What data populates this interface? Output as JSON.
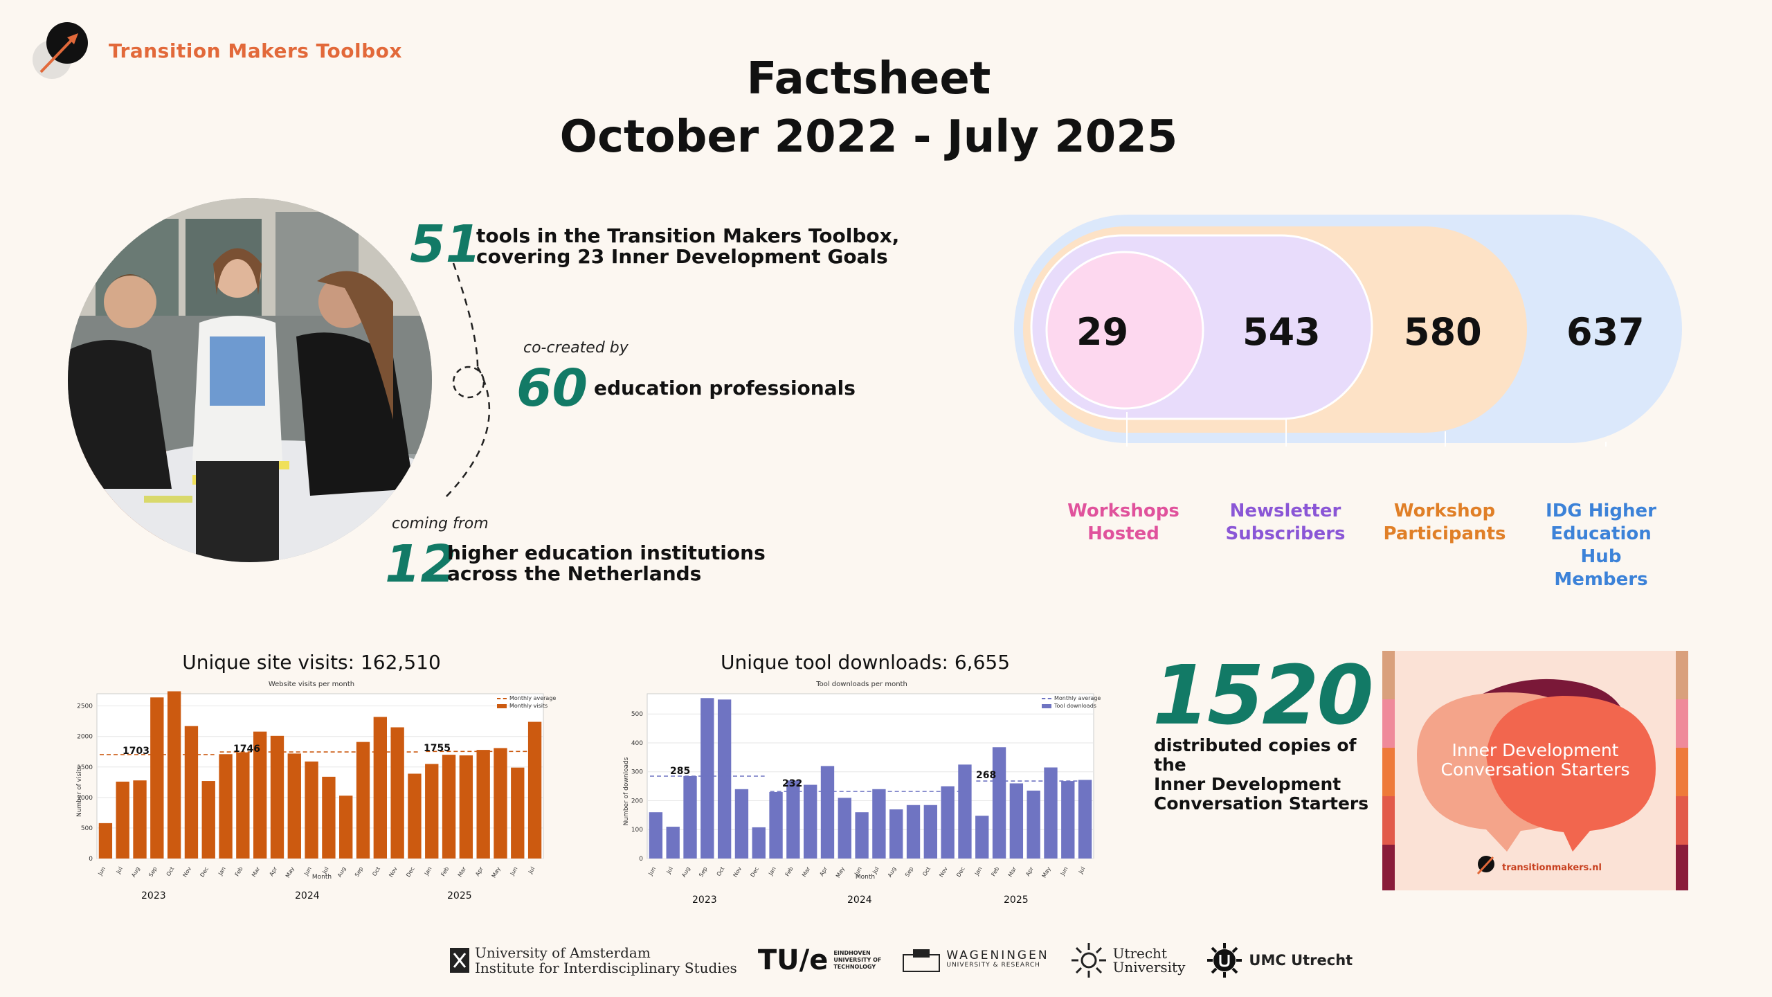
{
  "brand": {
    "name": "Transition Makers Toolbox"
  },
  "title": {
    "line1": "Factsheet",
    "line2": "October 2022 - July 2025"
  },
  "stats": {
    "tools": {
      "value": "51",
      "text_line1": "tools in the Transition Makers Toolbox,",
      "text_line2": "covering 23 Inner Development Goals"
    },
    "cocreated": {
      "prefix": "co-created by",
      "value": "60",
      "text": "education professionals"
    },
    "institutions": {
      "prefix": "coming from",
      "value": "12",
      "text_line1": "higher education institutions",
      "text_line2": "across the Netherlands"
    }
  },
  "nested": {
    "items": [
      {
        "value": "29",
        "label_line1": "Workshops",
        "label_line2": "Hosted",
        "label_line3": "",
        "color": "#e0529c",
        "fill": "#fdd8ef"
      },
      {
        "value": "543",
        "label_line1": "Newsletter",
        "label_line2": "Subscribers",
        "label_line3": "",
        "color": "#8a56d6",
        "fill": "#e8dcfb"
      },
      {
        "value": "580",
        "label_line1": "Workshop",
        "label_line2": "Participants",
        "label_line3": "",
        "color": "#e07f27",
        "fill": "#fde2c6"
      },
      {
        "value": "637",
        "label_line1": "IDG Higher",
        "label_line2": "Education Hub",
        "label_line3": "Members",
        "color": "#3c82d8",
        "fill": "#dbe8fb"
      }
    ]
  },
  "visits": {
    "heading": "Unique site visits: 162,510",
    "inner_title": "Website visits per month",
    "legend_avg": "Monthly average",
    "legend_bar": "Monthly visits",
    "ylabel": "Number of visits",
    "xlabel": "Month",
    "avg_labels": [
      "1703",
      "1746",
      "1755"
    ],
    "years": [
      "2023",
      "2024",
      "2025"
    ]
  },
  "downloads": {
    "heading": "Unique tool downloads: 6,655",
    "inner_title": "Tool downloads per month",
    "legend_avg": "Monthly average",
    "legend_bar": "Tool downloads",
    "ylabel": "Number of downloads",
    "xlabel": "Month",
    "avg_labels": [
      "285",
      "232",
      "268"
    ],
    "years": [
      "2023",
      "2024",
      "2025"
    ]
  },
  "copies": {
    "value": "1520",
    "line1": "distributed copies of the",
    "line2": "Inner Development",
    "line3": "Conversation Starters"
  },
  "card": {
    "title_line1": "Inner Development",
    "title_line2": "Conversation Starters",
    "url": "transitionmakers.nl"
  },
  "logos": {
    "uva_line1": "University of Amsterdam",
    "uva_line2": "Institute for Interdisciplinary Studies",
    "tue_mark": "TU/e",
    "tue_text1": "EINDHOVEN",
    "tue_text2": "UNIVERSITY OF",
    "tue_text3": "TECHNOLOGY",
    "wur_line1": "WAGENINGEN",
    "wur_line2": "UNIVERSITY & RESEARCH",
    "uu_line1": "Utrecht",
    "uu_line2": "University",
    "umc": "UMC Utrecht"
  },
  "chart_data": [
    {
      "type": "bar",
      "title": "Website visits per month",
      "xlabel": "Month",
      "ylabel": "Number of visits",
      "ylim": [
        0,
        2700
      ],
      "yticks": [
        0,
        500,
        1000,
        1500,
        2000,
        2500
      ],
      "legend": "top-right",
      "categories": [
        "Jun",
        "Jul",
        "Aug",
        "Sep",
        "Oct",
        "Nov",
        "Dec",
        "Jan",
        "Feb",
        "Mar",
        "Apr",
        "May",
        "Jun",
        "Jul",
        "Aug",
        "Sep",
        "Oct",
        "Nov",
        "Dec",
        "Jan",
        "Feb",
        "Mar",
        "Apr",
        "May",
        "Jun",
        "Jul"
      ],
      "series": [
        {
          "name": "Monthly visits",
          "values": [
            580,
            1260,
            1280,
            2640,
            2740,
            2170,
            1270,
            1710,
            1740,
            2080,
            2010,
            1720,
            1590,
            1340,
            1030,
            1910,
            2320,
            2150,
            1390,
            1550,
            1700,
            1690,
            1780,
            1810,
            1490,
            2240
          ]
        }
      ],
      "averages": [
        {
          "label": "1703",
          "value": 1703,
          "from": 0,
          "to": 7
        },
        {
          "label": "1746",
          "value": 1746,
          "from": 7,
          "to": 19
        },
        {
          "label": "1755",
          "value": 1755,
          "from": 19,
          "to": 26
        }
      ],
      "years": [
        {
          "label": "2023",
          "start": 0,
          "end": 7
        },
        {
          "label": "2024",
          "start": 7,
          "end": 19
        },
        {
          "label": "2025",
          "start": 19,
          "end": 26
        }
      ],
      "color": "#cc5a10"
    },
    {
      "type": "bar",
      "title": "Tool downloads per month",
      "xlabel": "Month",
      "ylabel": "Number of downloads",
      "ylim": [
        0,
        570
      ],
      "yticks": [
        0,
        100,
        200,
        300,
        400,
        500
      ],
      "legend": "top-right",
      "categories": [
        "Jun",
        "Jul",
        "Aug",
        "Sep",
        "Oct",
        "Nov",
        "Dec",
        "Jan",
        "Feb",
        "Mar",
        "Apr",
        "May",
        "Jun",
        "Jul",
        "Aug",
        "Sep",
        "Oct",
        "Nov",
        "Dec",
        "Jan",
        "Feb",
        "Mar",
        "Apr",
        "May",
        "Jun",
        "Jul"
      ],
      "series": [
        {
          "name": "Tool downloads",
          "values": [
            160,
            110,
            285,
            555,
            550,
            240,
            108,
            230,
            270,
            255,
            320,
            210,
            160,
            240,
            170,
            185,
            185,
            250,
            325,
            148,
            385,
            260,
            235,
            315,
            268,
            272
          ]
        }
      ],
      "averages": [
        {
          "label": "285",
          "value": 285,
          "from": 0,
          "to": 7
        },
        {
          "label": "232",
          "value": 232,
          "from": 7,
          "to": 19
        },
        {
          "label": "268",
          "value": 268,
          "from": 19,
          "to": 26
        }
      ],
      "years": [
        {
          "label": "2023",
          "start": 0,
          "end": 7
        },
        {
          "label": "2024",
          "start": 7,
          "end": 19
        },
        {
          "label": "2025",
          "start": 19,
          "end": 26
        }
      ],
      "color": "#6f74c2"
    }
  ]
}
